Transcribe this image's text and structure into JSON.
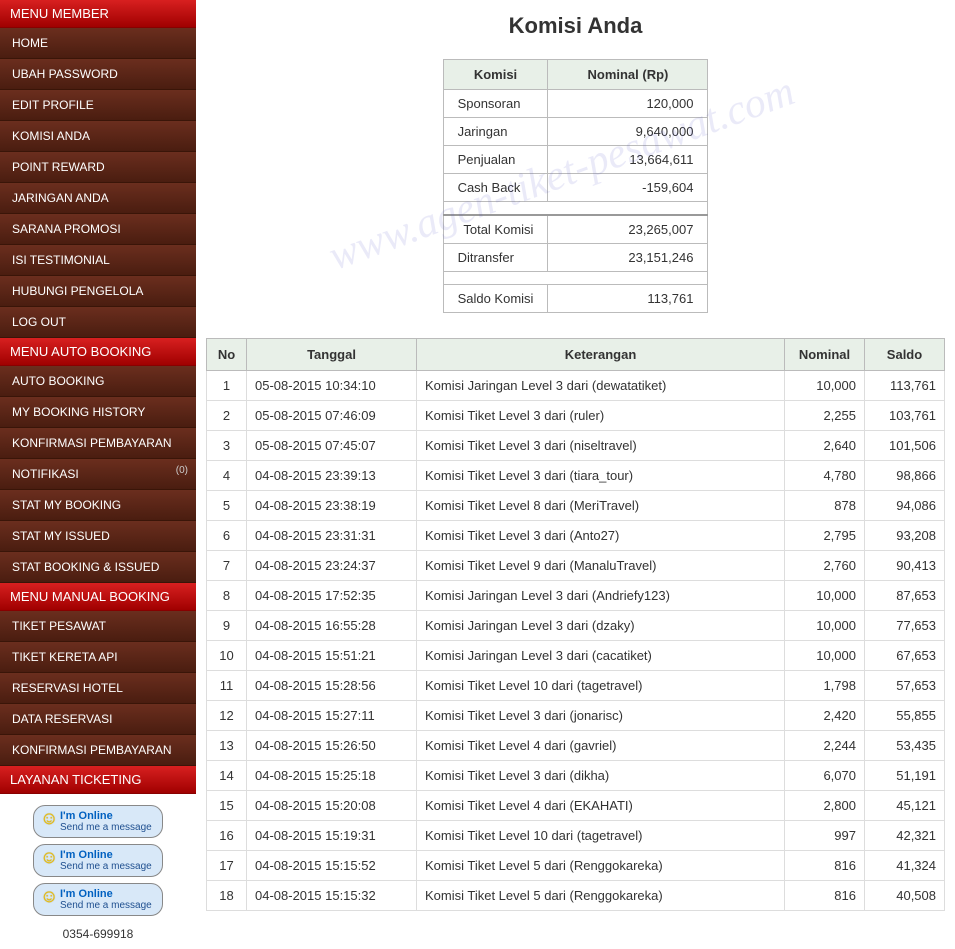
{
  "watermark": "www.agen-tiket-pesawat.com",
  "sidebar": {
    "section0": {
      "header": "MENU MEMBER",
      "items": [
        "HOME",
        "UBAH PASSWORD",
        "EDIT PROFILE",
        "KOMISI ANDA",
        "POINT REWARD",
        "JARINGAN ANDA",
        "SARANA PROMOSI",
        "ISI TESTIMONIAL",
        "HUBUNGI PENGELOLA",
        "LOG OUT"
      ]
    },
    "section1": {
      "header": "MENU AUTO BOOKING",
      "items": [
        "AUTO BOOKING",
        "MY BOOKING HISTORY",
        "KONFIRMASI PEMBAYARAN",
        "NOTIFIKASI",
        "STAT MY BOOKING",
        "STAT MY ISSUED",
        "STAT BOOKING & ISSUED"
      ],
      "notif_badge": "(0)"
    },
    "section2": {
      "header": "MENU MANUAL BOOKING",
      "items": [
        "TIKET PESAWAT",
        "TIKET KERETA API",
        "RESERVASI HOTEL",
        "DATA RESERVASI",
        "KONFIRMASI PEMBAYARAN"
      ]
    },
    "section3": {
      "header": "LAYANAN TICKETING"
    },
    "online_label1": "I'm Online",
    "online_label2": "Send me a message",
    "phone": "0354-699918"
  },
  "page": {
    "title": "Komisi Anda",
    "summary": {
      "col_komisi": "Komisi",
      "col_nominal": "Nominal (Rp)",
      "rows": [
        {
          "label": "Sponsoran",
          "value": "120,000"
        },
        {
          "label": "Jaringan",
          "value": "9,640,000"
        },
        {
          "label": "Penjualan",
          "value": "13,664,611"
        },
        {
          "label": "Cash Back",
          "value": "-159,604"
        }
      ],
      "total_label": "Total Komisi",
      "total_value": "23,265,007",
      "transfer_label": "Ditransfer",
      "transfer_value": "23,151,246",
      "saldo_label": "Saldo Komisi",
      "saldo_value": "113,761"
    },
    "table": {
      "col_no": "No",
      "col_tanggal": "Tanggal",
      "col_ket": "Keterangan",
      "col_nominal": "Nominal",
      "col_saldo": "Saldo",
      "rows": [
        {
          "no": "1",
          "tgl": "05-08-2015 10:34:10",
          "ket": "Komisi Jaringan Level 3 dari (dewatatiket)",
          "nom": "10,000",
          "sal": "113,761"
        },
        {
          "no": "2",
          "tgl": "05-08-2015 07:46:09",
          "ket": "Komisi Tiket Level 3 dari (ruler)",
          "nom": "2,255",
          "sal": "103,761"
        },
        {
          "no": "3",
          "tgl": "05-08-2015 07:45:07",
          "ket": "Komisi Tiket Level 3 dari (niseltravel)",
          "nom": "2,640",
          "sal": "101,506"
        },
        {
          "no": "4",
          "tgl": "04-08-2015 23:39:13",
          "ket": "Komisi Tiket Level 3 dari (tiara_tour)",
          "nom": "4,780",
          "sal": "98,866"
        },
        {
          "no": "5",
          "tgl": "04-08-2015 23:38:19",
          "ket": "Komisi Tiket Level 8 dari (MeriTravel)",
          "nom": "878",
          "sal": "94,086"
        },
        {
          "no": "6",
          "tgl": "04-08-2015 23:31:31",
          "ket": "Komisi Tiket Level 3 dari (Anto27)",
          "nom": "2,795",
          "sal": "93,208"
        },
        {
          "no": "7",
          "tgl": "04-08-2015 23:24:37",
          "ket": "Komisi Tiket Level 9 dari (ManaluTravel)",
          "nom": "2,760",
          "sal": "90,413"
        },
        {
          "no": "8",
          "tgl": "04-08-2015 17:52:35",
          "ket": "Komisi Jaringan Level 3 dari (Andriefy123)",
          "nom": "10,000",
          "sal": "87,653"
        },
        {
          "no": "9",
          "tgl": "04-08-2015 16:55:28",
          "ket": "Komisi Jaringan Level 3 dari (dzaky)",
          "nom": "10,000",
          "sal": "77,653"
        },
        {
          "no": "10",
          "tgl": "04-08-2015 15:51:21",
          "ket": "Komisi Jaringan Level 3 dari (cacatiket)",
          "nom": "10,000",
          "sal": "67,653"
        },
        {
          "no": "11",
          "tgl": "04-08-2015 15:28:56",
          "ket": "Komisi Tiket Level 10 dari (tagetravel)",
          "nom": "1,798",
          "sal": "57,653"
        },
        {
          "no": "12",
          "tgl": "04-08-2015 15:27:11",
          "ket": "Komisi Tiket Level 3 dari (jonarisc)",
          "nom": "2,420",
          "sal": "55,855"
        },
        {
          "no": "13",
          "tgl": "04-08-2015 15:26:50",
          "ket": "Komisi Tiket Level 4 dari (gavriel)",
          "nom": "2,244",
          "sal": "53,435"
        },
        {
          "no": "14",
          "tgl": "04-08-2015 15:25:18",
          "ket": "Komisi Tiket Level 3 dari (dikha)",
          "nom": "6,070",
          "sal": "51,191"
        },
        {
          "no": "15",
          "tgl": "04-08-2015 15:20:08",
          "ket": "Komisi Tiket Level 4 dari (EKAHATI)",
          "nom": "2,800",
          "sal": "45,121"
        },
        {
          "no": "16",
          "tgl": "04-08-2015 15:19:31",
          "ket": "Komisi Tiket Level 10 dari (tagetravel)",
          "nom": "997",
          "sal": "42,321"
        },
        {
          "no": "17",
          "tgl": "04-08-2015 15:15:52",
          "ket": "Komisi Tiket Level 5 dari (Renggokareka)",
          "nom": "816",
          "sal": "41,324"
        },
        {
          "no": "18",
          "tgl": "04-08-2015 15:15:32",
          "ket": "Komisi Tiket Level 5 dari (Renggokareka)",
          "nom": "816",
          "sal": "40,508"
        }
      ]
    }
  }
}
